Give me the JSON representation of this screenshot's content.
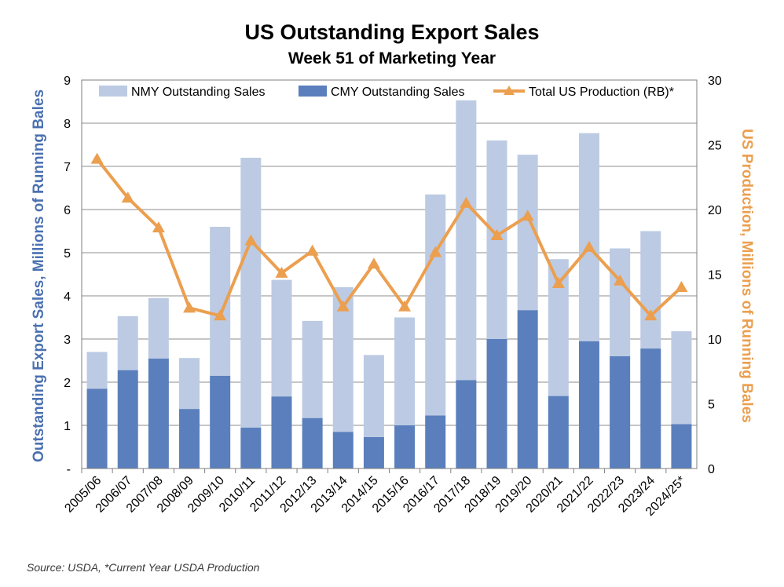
{
  "title": "US Outstanding Export Sales",
  "subtitle": "Week 51 of Marketing Year",
  "source": "Source: USDA, *Current Year USDA Production",
  "colors": {
    "nmy": "#bccbe3",
    "cmy": "#5a7fbc",
    "production": "#eb9f4f",
    "left_axis_label": "#4a70b0",
    "right_axis_label": "#eb9f4f",
    "grid": "#8c8c8c"
  },
  "chart_data": {
    "type": "bar",
    "stacked": true,
    "categories": [
      "2005/06",
      "2006/07",
      "2007/08",
      "2008/09",
      "2009/10",
      "2010/11",
      "2011/12",
      "2012/13",
      "2013/14",
      "2014/15",
      "2015/16",
      "2016/17",
      "2017/18",
      "2018/19",
      "2019/20",
      "2020/21",
      "2021/22",
      "2022/23",
      "2023/24",
      "2024/25*"
    ],
    "series": [
      {
        "name": "NMY Outstanding Sales",
        "kind": "bar",
        "axis": "left",
        "values": [
          0.85,
          1.25,
          1.4,
          1.18,
          3.45,
          6.25,
          2.7,
          2.25,
          3.35,
          1.9,
          2.5,
          5.12,
          6.48,
          4.6,
          3.6,
          3.17,
          4.82,
          2.5,
          2.72,
          2.15
        ]
      },
      {
        "name": "CMY Outstanding Sales",
        "kind": "bar",
        "axis": "left",
        "values": [
          1.85,
          2.28,
          2.55,
          1.38,
          2.15,
          0.95,
          1.67,
          1.17,
          0.85,
          0.73,
          1.0,
          1.23,
          2.05,
          3.0,
          3.67,
          1.68,
          2.95,
          2.6,
          2.78,
          1.03
        ]
      },
      {
        "name": "Total US Production (RB)*",
        "kind": "line",
        "marker": "triangle",
        "axis": "right",
        "values": [
          23.9,
          20.9,
          18.6,
          12.4,
          11.8,
          17.6,
          15.1,
          16.8,
          12.5,
          15.8,
          12.5,
          16.7,
          20.5,
          18.0,
          19.5,
          14.3,
          17.1,
          14.5,
          11.8,
          14.0
        ]
      }
    ],
    "y_left": {
      "label": "Outstanding Export Sales, Millions of Running Bales",
      "min": 0,
      "max": 9,
      "ticks": [
        "-",
        "1",
        "2",
        "3",
        "4",
        "5",
        "6",
        "7",
        "8",
        "9"
      ]
    },
    "y_right": {
      "label": "US Production, Millions of Running Bales",
      "min": 0,
      "max": 30,
      "ticks": [
        "0",
        "5",
        "10",
        "15",
        "20",
        "25",
        "30"
      ]
    },
    "grid": true,
    "legend": "top"
  }
}
